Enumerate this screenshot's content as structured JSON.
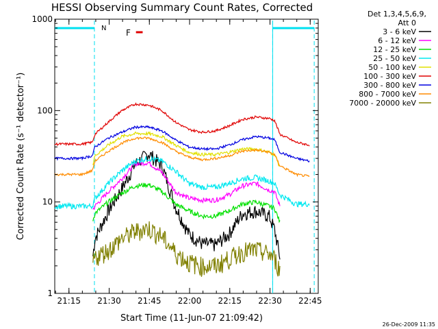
{
  "chart_data": {
    "type": "line",
    "title": "HESSI Observing Summary Count Rates, Corrected",
    "xlabel": "Start Time (11-Jun-07 21:09:42)",
    "ylabel": "Corrected Count Rate (s⁻¹ detector⁻¹)",
    "y_scale": "log",
    "ylim": [
      1,
      1000
    ],
    "xlim": [
      "21:09:42",
      "22:48:00"
    ],
    "x_ticks": [
      "21:15",
      "21:30",
      "21:45",
      "22:00",
      "22:15",
      "22:30",
      "22:45"
    ],
    "y_ticks": [
      "1",
      "10",
      "100",
      "1000"
    ],
    "legend_header": [
      "Det 1,3,4,5,6,9,",
      "Att 0"
    ],
    "legend_position": "right",
    "timestamp": "26-Dec-2009 11:35",
    "flags": [
      {
        "label": "N",
        "start": "21:09:42",
        "end": "21:24:30",
        "color": "#00e0f0"
      },
      {
        "label": "F",
        "start": "21:40:00",
        "end": "21:42:30",
        "color": "#e00000"
      }
    ],
    "flag_row_label_N": "N",
    "flag_row_label_F": "F",
    "night_boundaries": [
      "21:24:30",
      "22:31:00",
      "22:46:30"
    ],
    "x_minutes": [
      0,
      5,
      10,
      14,
      15,
      20,
      25,
      30,
      35,
      40,
      45,
      50,
      55,
      60,
      65,
      70,
      75,
      80,
      82,
      84,
      90,
      95
    ],
    "series": [
      {
        "name": "3 - 6 keV",
        "color": "#000000",
        "values": [
          null,
          null,
          null,
          2.2,
          4.0,
          8.0,
          14.0,
          26.0,
          34.0,
          25.0,
          9.0,
          4.5,
          3.5,
          3.4,
          4.5,
          7.5,
          8.0,
          7.0,
          5.0,
          2.5,
          null,
          null
        ]
      },
      {
        "name": "6 - 12 keV",
        "color": "#ff00ff",
        "values": [
          null,
          null,
          null,
          8.0,
          9.0,
          13.0,
          18.0,
          26.0,
          27.0,
          21.0,
          13.0,
          11.0,
          10.5,
          10.5,
          12.0,
          15.0,
          16.0,
          13.5,
          13.0,
          9.0,
          null,
          null
        ]
      },
      {
        "name": "12 - 25 keV",
        "color": "#00e000",
        "values": [
          null,
          null,
          null,
          6.0,
          7.5,
          10.0,
          12.5,
          15.0,
          15.5,
          13.0,
          9.5,
          8.0,
          7.0,
          7.0,
          8.0,
          9.5,
          10.0,
          9.0,
          8.5,
          6.0,
          null,
          null
        ]
      },
      {
        "name": "25 - 50 keV",
        "color": "#00e8f0",
        "values": [
          9.0,
          9.0,
          9.0,
          9.0,
          11.0,
          16.0,
          22.0,
          28.0,
          30.0,
          28.0,
          22.0,
          16.0,
          14.5,
          14.5,
          16.0,
          18.0,
          18.5,
          17.0,
          16.0,
          12.0,
          9.5,
          9.5
        ]
      },
      {
        "name": "50 - 100 keV",
        "color": "#e0e000",
        "values": [
          null,
          null,
          null,
          24.0,
          32.0,
          42.0,
          52.0,
          56.0,
          56.0,
          52.0,
          42.0,
          35.0,
          33.0,
          33.0,
          35.0,
          38.0,
          38.0,
          35.0,
          33.0,
          24.0,
          null,
          null
        ]
      },
      {
        "name": "100 - 300 keV",
        "color": "#e00000",
        "values": [
          43.0,
          43.0,
          43.0,
          45.0,
          55.0,
          75.0,
          100.0,
          118.0,
          115.0,
          100.0,
          75.0,
          62.0,
          58.0,
          60.0,
          68.0,
          80.0,
          85.0,
          82.0,
          78.0,
          55.0,
          45.0,
          42.0
        ]
      },
      {
        "name": "300 - 800 keV",
        "color": "#0000e0",
        "values": [
          30.0,
          30.0,
          30.0,
          32.0,
          40.0,
          50.0,
          58.0,
          66.0,
          66.0,
          60.0,
          48.0,
          40.0,
          38.0,
          38.0,
          42.0,
          48.0,
          52.0,
          50.0,
          48.0,
          35.0,
          30.0,
          28.0
        ]
      },
      {
        "name": "800 - 7000 keV",
        "color": "#ff8c00",
        "values": [
          20.0,
          20.0,
          20.0,
          22.0,
          28.0,
          36.0,
          44.0,
          50.0,
          50.0,
          45.0,
          36.0,
          31.0,
          29.0,
          30.0,
          32.0,
          36.0,
          37.0,
          35.0,
          33.0,
          25.0,
          20.0,
          19.0
        ]
      },
      {
        "name": "7000 - 20000 keV",
        "color": "#808000",
        "values": [
          null,
          null,
          null,
          2.0,
          2.5,
          3.0,
          4.0,
          4.8,
          5.2,
          4.2,
          2.8,
          2.2,
          2.0,
          2.0,
          2.4,
          2.9,
          3.0,
          2.7,
          2.4,
          1.8,
          null,
          null
        ]
      }
    ]
  }
}
